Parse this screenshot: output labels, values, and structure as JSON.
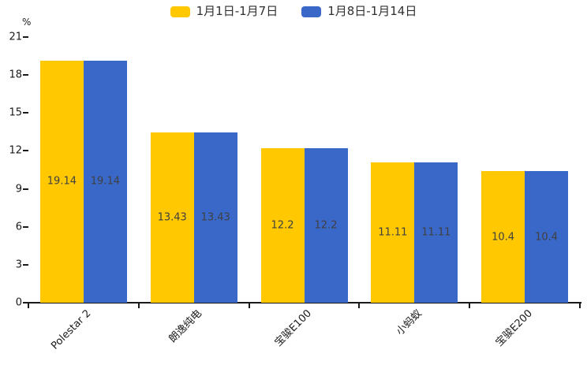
{
  "chart": {
    "unit_label": "%"
  },
  "chart_data": {
    "type": "bar",
    "title": "",
    "xlabel": "",
    "ylabel": "%",
    "categories": [
      "Polestar 2",
      "朗逸纯电",
      "宝骏E100",
      "小蚂蚁",
      "宝骏E200"
    ],
    "series": [
      {
        "name": "1月1日-1月7日",
        "color": "#FFC800",
        "values": [
          19.14,
          13.43,
          12.2,
          11.11,
          10.4
        ]
      },
      {
        "name": "1月8日-1月14日",
        "color": "#3A68C8",
        "values": [
          19.14,
          13.43,
          12.2,
          11.11,
          10.4
        ]
      }
    ],
    "ylim": [
      0,
      21
    ],
    "yticks": [
      0,
      3,
      6,
      9,
      12,
      15,
      18,
      21
    ],
    "grid": false,
    "legend_position": "top-center",
    "value_label_position": "inside-middle",
    "value_label_color": "#404040",
    "axis_color": "#1a1a1a"
  }
}
